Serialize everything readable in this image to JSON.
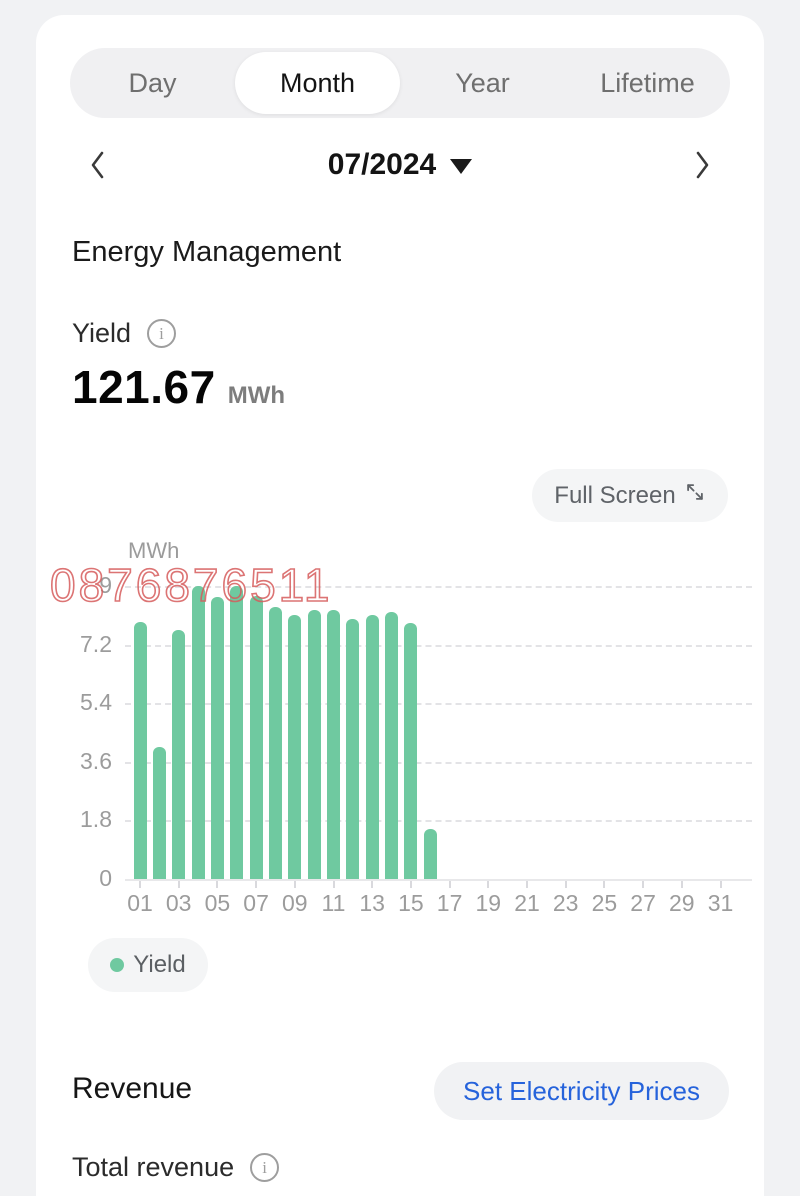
{
  "colors": {
    "accent_green": "#6fc9a0",
    "link_blue": "#2663db",
    "watermark_red": "#d65c5c",
    "card_bg": "#ffffff",
    "page_bg": "#f1f2f4"
  },
  "tabs": {
    "items": [
      {
        "label": "Day",
        "selected": false
      },
      {
        "label": "Month",
        "selected": true
      },
      {
        "label": "Year",
        "selected": false
      },
      {
        "label": "Lifetime",
        "selected": false
      }
    ]
  },
  "date_nav": {
    "value": "07/2024"
  },
  "energy_section": {
    "title": "Energy Management",
    "yield_label": "Yield",
    "yield_value": "121.67",
    "yield_unit": "MWh",
    "fullscreen_label": "Full Screen"
  },
  "watermark": {
    "text": "0876876511"
  },
  "chart_data": {
    "type": "bar",
    "series": [
      {
        "name": "Yield",
        "values": [
          7.9,
          4.05,
          7.65,
          9.0,
          8.65,
          9.0,
          8.7,
          8.35,
          8.1,
          8.25,
          8.25,
          8.0,
          8.1,
          8.2,
          7.85,
          1.55,
          0,
          0,
          0,
          0,
          0,
          0,
          0,
          0,
          0,
          0,
          0,
          0,
          0,
          0,
          0
        ]
      }
    ],
    "categories": [
      "01",
      "02",
      "03",
      "04",
      "05",
      "06",
      "07",
      "08",
      "09",
      "10",
      "11",
      "12",
      "13",
      "14",
      "15",
      "16",
      "17",
      "18",
      "19",
      "20",
      "21",
      "22",
      "23",
      "24",
      "25",
      "26",
      "27",
      "28",
      "29",
      "30",
      "31"
    ],
    "xtick_labels": [
      "01",
      "03",
      "05",
      "07",
      "09",
      "11",
      "13",
      "15",
      "17",
      "19",
      "21",
      "23",
      "25",
      "27",
      "29",
      "31"
    ],
    "yticks": [
      0,
      1.8,
      3.6,
      5.4,
      7.2,
      9
    ],
    "ylim": [
      0,
      9
    ],
    "axis_title": "MWh",
    "bar_color": "#6fc9a0",
    "grid": "horizontal-dashed",
    "legend_position": "bottom-left",
    "title": ""
  },
  "legend": {
    "label": "Yield"
  },
  "revenue_section": {
    "title": "Revenue",
    "set_prices_label": "Set Electricity Prices",
    "total_label": "Total revenue"
  }
}
